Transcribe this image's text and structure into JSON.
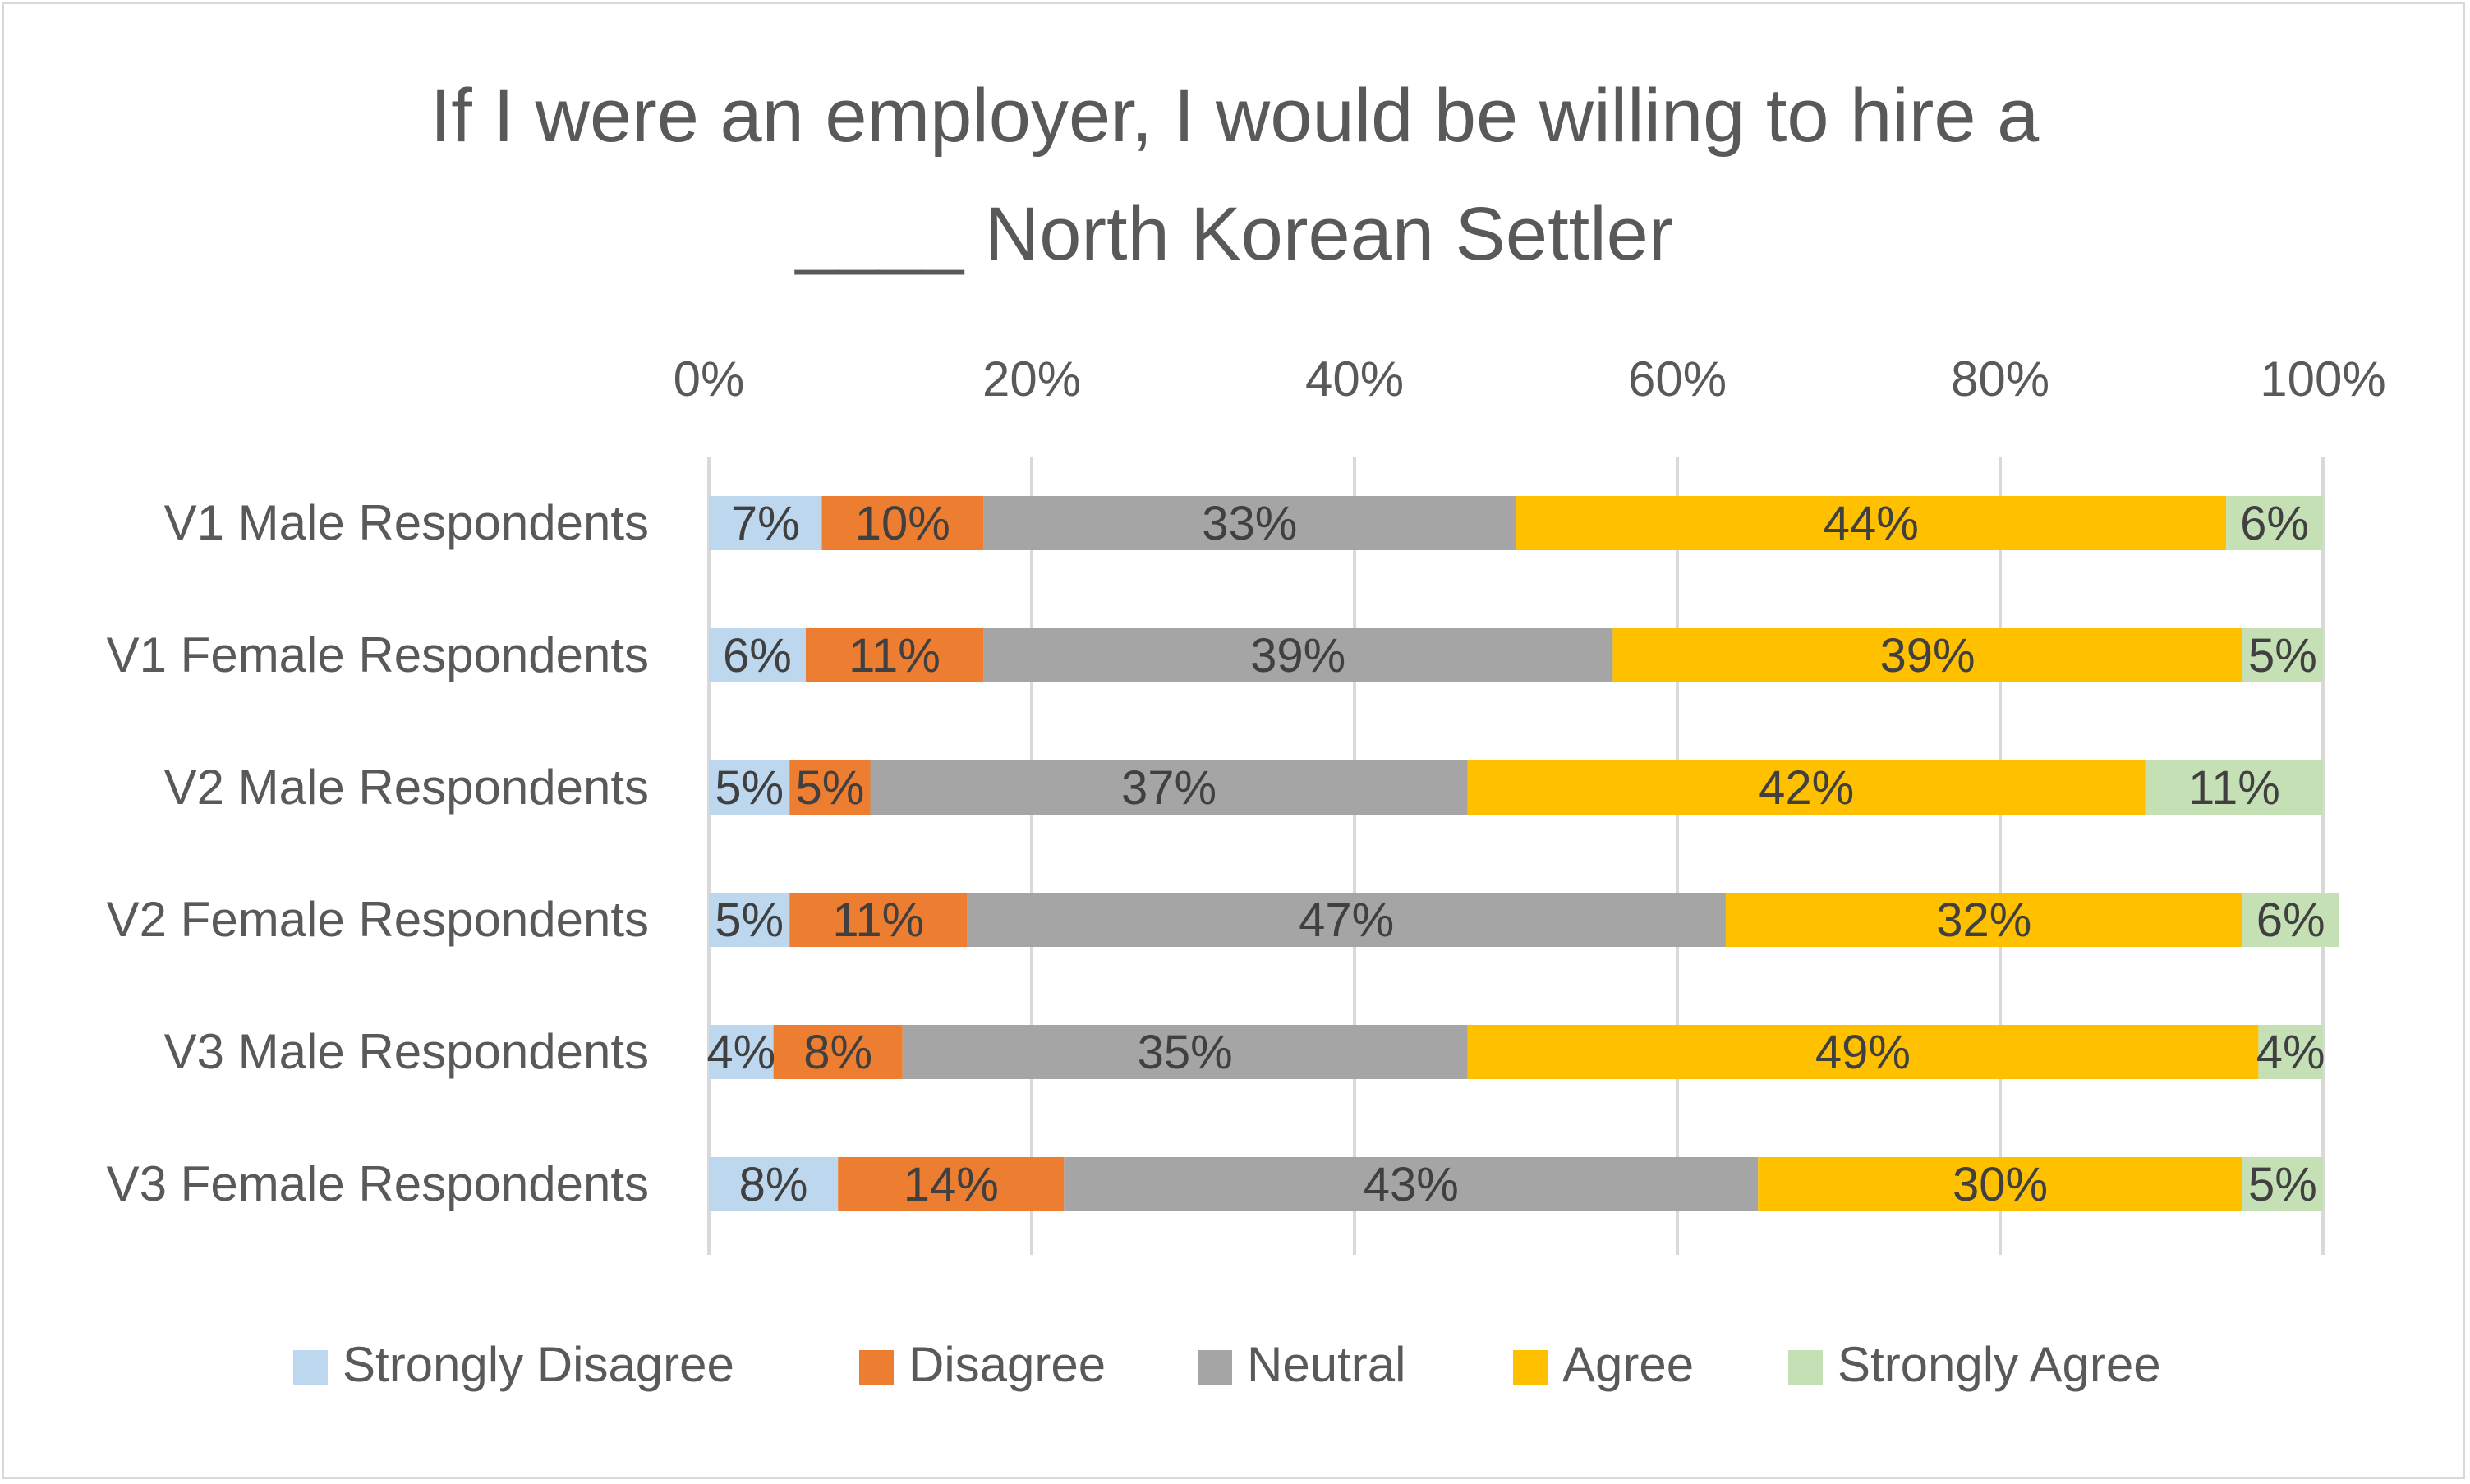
{
  "chart_data": {
    "type": "bar",
    "orientation": "horizontal",
    "stacked": "percent",
    "title_lines": [
      "If I were an employer, I would be willing to hire a",
      "____ North Korean Settler"
    ],
    "xlabel": "",
    "ylabel": "",
    "xlim": [
      0,
      100
    ],
    "x_ticks": [
      "0%",
      "20%",
      "40%",
      "60%",
      "80%",
      "100%"
    ],
    "x_axis_position": "top",
    "grid": true,
    "legend_position": "bottom",
    "categories": [
      "V1 Male Respondents",
      "V1 Female Respondents",
      "V2 Male Respondents",
      "V2 Female Respondents",
      "V3 Male Respondents",
      "V3 Female Respondents"
    ],
    "series": [
      {
        "name": "Strongly Disagree",
        "color": "#bdd7ee",
        "values": [
          7,
          6,
          5,
          5,
          4,
          8
        ],
        "labels": [
          "7%",
          "6%",
          "5%",
          "5%",
          "4%",
          "8%"
        ]
      },
      {
        "name": "Disagree",
        "color": "#ed7d31",
        "values": [
          10,
          11,
          5,
          11,
          8,
          14
        ],
        "labels": [
          "10%",
          "11%",
          "5%",
          "11%",
          "8%",
          "14%"
        ]
      },
      {
        "name": "Neutral",
        "color": "#a5a5a5",
        "values": [
          33,
          39,
          37,
          47,
          35,
          43
        ],
        "labels": [
          "33%",
          "39%",
          "37%",
          "47%",
          "35%",
          "43%"
        ]
      },
      {
        "name": "Agree",
        "color": "#ffc000",
        "values": [
          44,
          39,
          42,
          32,
          49,
          30
        ],
        "labels": [
          "44%",
          "39%",
          "42%",
          "32%",
          "49%",
          "30%"
        ]
      },
      {
        "name": "Strongly Agree",
        "color": "#c5e0b4",
        "values": [
          6,
          5,
          11,
          6,
          4,
          5
        ],
        "labels": [
          "6%",
          "5%",
          "11%",
          "6%",
          "4%",
          "5%"
        ]
      }
    ]
  },
  "colors": {
    "text": "#595959",
    "data_label": "#404040",
    "grid": "#d9d9d9",
    "border": "#d9d9d9",
    "background": "#ffffff"
  }
}
